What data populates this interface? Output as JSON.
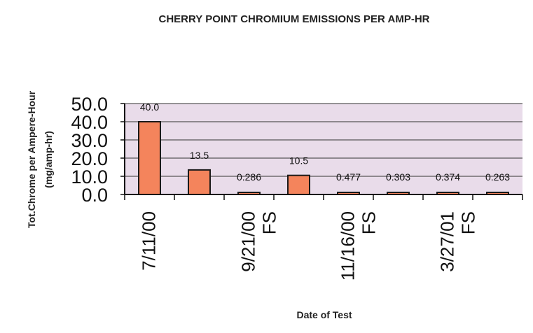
{
  "chart_data": {
    "type": "bar",
    "title": "CHERRY POINT CHROMIUM EMISSIONS PER AMP-HR",
    "ylabel_line1": "Tot.Chrome per Ampere-Hour",
    "ylabel_line2": "(mg/amp-hr)",
    "xlabel": "Date of Test",
    "ylim": [
      0,
      50
    ],
    "yticks": [
      "50.0",
      "40.0",
      "30.0",
      "20.0",
      "10.0",
      "0.0"
    ],
    "ytick_values": [
      50,
      40,
      30,
      20,
      10,
      0
    ],
    "grid": true,
    "values": [
      40.0,
      13.5,
      0.286,
      10.5,
      0.477,
      0.303,
      0.374,
      0.263
    ],
    "data_labels": [
      "40.0",
      "13.5",
      "0.286",
      "10.5",
      "0.477",
      "0.303",
      "0.374",
      "0.263"
    ],
    "category_labels": [
      {
        "index": 0,
        "lines": [
          "7/11/00"
        ]
      },
      {
        "index": 2,
        "lines": [
          "9/21/00",
          "FS"
        ]
      },
      {
        "index": 4,
        "lines": [
          "11/16/00",
          "FS"
        ]
      },
      {
        "index": 6,
        "lines": [
          "3/27/01",
          "FS"
        ]
      }
    ],
    "colors": {
      "bar_fill": "#f4845c",
      "bar_stroke": "#1a1a1a",
      "plot_bg": "#e9dcea",
      "grid": "#333333"
    }
  }
}
